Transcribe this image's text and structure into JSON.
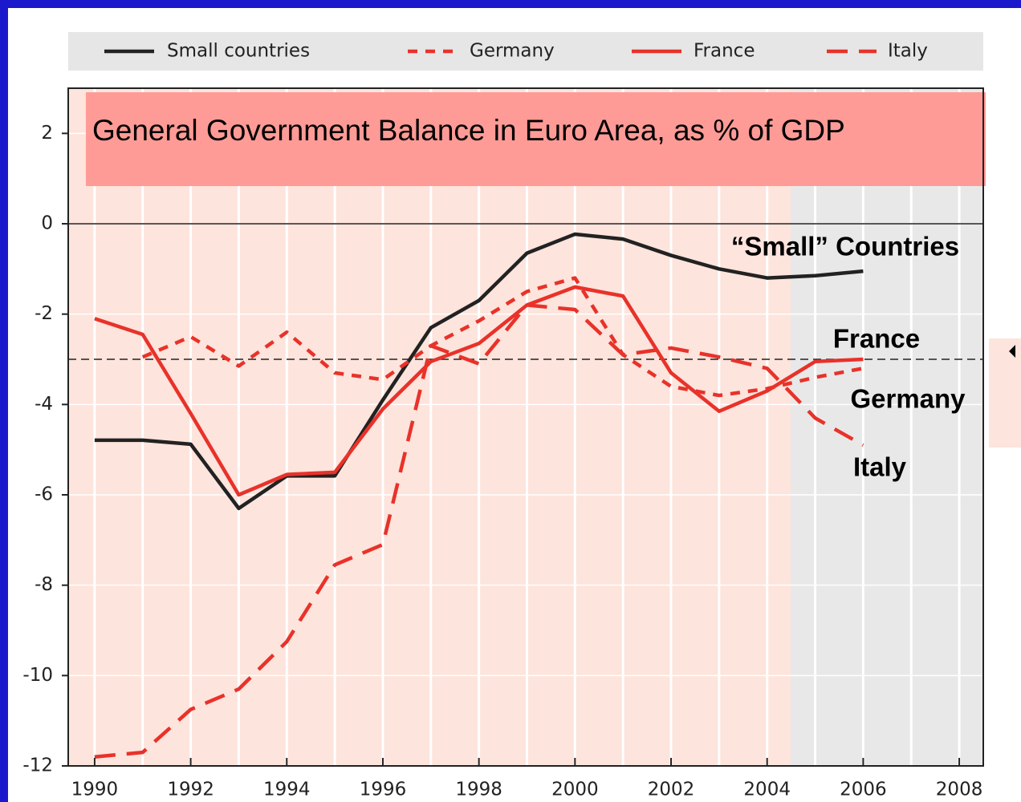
{
  "chart_data": {
    "type": "line",
    "title": "General  Government  Balance in Euro Area, as % of GDP",
    "x": [
      1990,
      1991,
      1992,
      1993,
      1994,
      1995,
      1996,
      1997,
      1998,
      1999,
      2000,
      2001,
      2002,
      2003,
      2004,
      2005,
      2006
    ],
    "series": [
      {
        "name": "Small countries",
        "color": "#222222",
        "dash": "solid",
        "values": [
          -4.79,
          -4.79,
          -4.88,
          -6.3,
          -5.58,
          -5.58,
          -3.9,
          -2.3,
          -1.7,
          -0.65,
          -0.23,
          -0.34,
          -0.7,
          -1.0,
          -1.2,
          -1.15,
          -1.05
        ]
      },
      {
        "name": "Germany",
        "color": "#e8322a",
        "dash": "short",
        "values": [
          null,
          -2.95,
          -2.5,
          -3.15,
          -2.4,
          -3.3,
          -3.45,
          -2.7,
          -2.15,
          -1.5,
          -1.2,
          -2.9,
          -3.6,
          -3.8,
          -3.65,
          -3.4,
          -3.2
        ]
      },
      {
        "name": "France",
        "color": "#e8322a",
        "dash": "solid",
        "values": [
          -2.1,
          -2.45,
          -4.2,
          -6.0,
          -5.55,
          -5.5,
          -4.1,
          -3.05,
          -2.65,
          -1.8,
          -1.4,
          -1.6,
          -3.3,
          -4.15,
          -3.7,
          -3.05,
          -3.0
        ]
      },
      {
        "name": "Italy",
        "color": "#e8322a",
        "dash": "long",
        "values": [
          -11.8,
          -11.7,
          -10.75,
          -10.3,
          -9.25,
          -7.55,
          -7.1,
          -2.7,
          -3.1,
          -1.8,
          -1.9,
          -2.9,
          -2.75,
          -2.95,
          -3.2,
          -4.3,
          -4.9
        ]
      }
    ],
    "xlim": [
      1989.45,
      2008.5
    ],
    "xticks": [
      1990,
      1992,
      1994,
      1996,
      1998,
      2000,
      2002,
      2004,
      2006,
      2008
    ],
    "ylim": [
      -12,
      3
    ],
    "yticks": [
      2,
      0,
      -2,
      -4,
      -6,
      -8,
      -10,
      -12
    ],
    "reference_line": -3,
    "annotations": [
      "“Small” Countries",
      "France",
      "Germany",
      "Italy"
    ]
  }
}
